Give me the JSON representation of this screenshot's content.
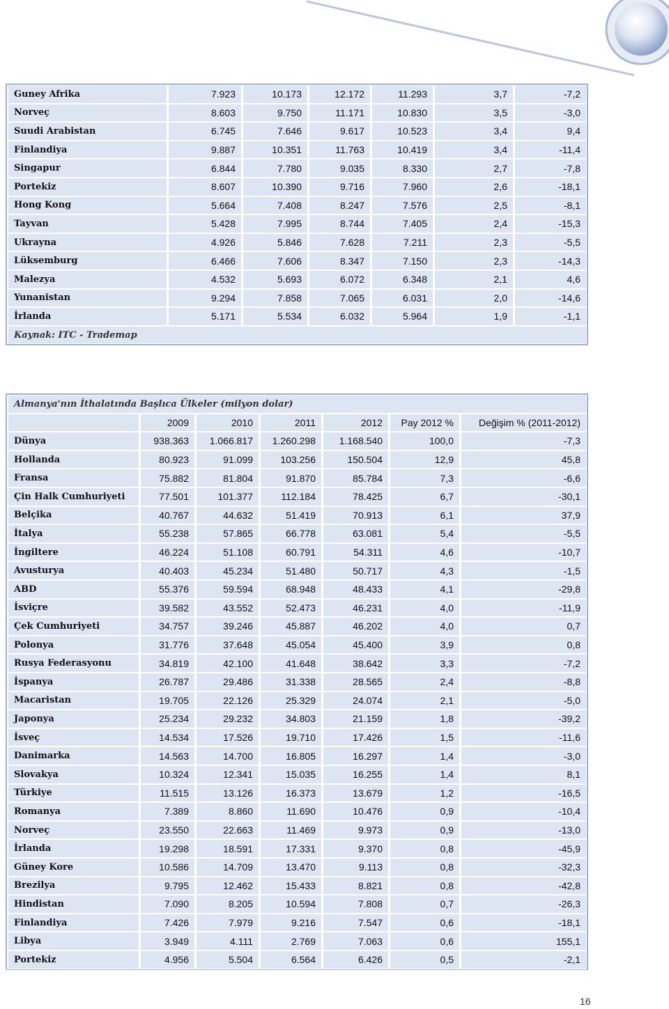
{
  "table1": {
    "rows": [
      [
        "Guney Afrika",
        "7.923",
        "10.173",
        "12.172",
        "11.293",
        "3,7",
        "-7,2"
      ],
      [
        "Norveç",
        "8.603",
        "9.750",
        "11.171",
        "10.830",
        "3,5",
        "-3,0"
      ],
      [
        "Suudi Arabistan",
        "6.745",
        "7.646",
        "9.617",
        "10.523",
        "3,4",
        "9,4"
      ],
      [
        "Finlandiya",
        "9.887",
        "10.351",
        "11.763",
        "10.419",
        "3,4",
        "-11,4"
      ],
      [
        "Singapur",
        "6.844",
        "7.780",
        "9.035",
        "8.330",
        "2,7",
        "-7,8"
      ],
      [
        "Portekiz",
        "8.607",
        "10.390",
        "9.716",
        "7.960",
        "2,6",
        "-18,1"
      ],
      [
        "Hong Kong",
        "5.664",
        "7.408",
        "8.247",
        "7.576",
        "2,5",
        "-8,1"
      ],
      [
        "Tayvan",
        "5.428",
        "7.995",
        "8.744",
        "7.405",
        "2,4",
        "-15,3"
      ],
      [
        "Ukrayna",
        "4.926",
        "5.846",
        "7.628",
        "7.211",
        "2,3",
        "-5,5"
      ],
      [
        "Lüksemburg",
        "6.466",
        "7.606",
        "8.347",
        "7.150",
        "2,3",
        "-14,3"
      ],
      [
        "Malezya",
        "4.532",
        "5.693",
        "6.072",
        "6.348",
        "2,1",
        "4,6"
      ],
      [
        "Yunanistan",
        "9.294",
        "7.858",
        "7.065",
        "6.031",
        "2,0",
        "-14,6"
      ],
      [
        "İrlanda",
        "5.171",
        "5.534",
        "6.032",
        "5.964",
        "1,9",
        "-1,1"
      ]
    ],
    "source": "Kaynak: ITC - Trademap"
  },
  "table2": {
    "title": "Almanya'nın İthalatında Başlıca Ülkeler (milyon dolar)",
    "header": [
      "2009",
      "2010",
      "2011",
      "2012",
      "Pay 2012 %",
      "Değişim % (2011-2012)"
    ],
    "rows": [
      [
        "Dünya",
        "938.363",
        "1.066.817",
        "1.260.298",
        "1.168.540",
        "100,0",
        "-7,3"
      ],
      [
        "Hollanda",
        "80.923",
        "91.099",
        "103.256",
        "150.504",
        "12,9",
        "45,8"
      ],
      [
        "Fransa",
        "75.882",
        "81.804",
        "91.870",
        "85.784",
        "7,3",
        "-6,6"
      ],
      [
        "Çin Halk Cumhuriyeti",
        "77.501",
        "101.377",
        "112.184",
        "78.425",
        "6,7",
        "-30,1"
      ],
      [
        "Belçika",
        "40.767",
        "44.632",
        "51.419",
        "70.913",
        "6,1",
        "37,9"
      ],
      [
        "İtalya",
        "55.238",
        "57.865",
        "66.778",
        "63.081",
        "5,4",
        "-5,5"
      ],
      [
        "İngiltere",
        "46.224",
        "51.108",
        "60.791",
        "54.311",
        "4,6",
        "-10,7"
      ],
      [
        "Avusturya",
        "40.403",
        "45.234",
        "51.480",
        "50.717",
        "4,3",
        "-1,5"
      ],
      [
        "ABD",
        "55.376",
        "59.594",
        "68.948",
        "48.433",
        "4,1",
        "-29,8"
      ],
      [
        "İsviçre",
        "39.582",
        "43.552",
        "52.473",
        "46.231",
        "4,0",
        "-11,9"
      ],
      [
        "Çek Cumhuriyeti",
        "34.757",
        "39.246",
        "45.887",
        "46.202",
        "4,0",
        "0,7"
      ],
      [
        "Polonya",
        "31.776",
        "37.648",
        "45.054",
        "45.400",
        "3,9",
        "0,8"
      ],
      [
        "Rusya Federasyonu",
        "34.819",
        "42.100",
        "41.648",
        "38.642",
        "3,3",
        "-7,2"
      ],
      [
        "İspanya",
        "26.787",
        "29.486",
        "31.338",
        "28.565",
        "2,4",
        "-8,8"
      ],
      [
        "Macaristan",
        "19.705",
        "22.126",
        "25.329",
        "24.074",
        "2,1",
        "-5,0"
      ],
      [
        "Japonya",
        "25.234",
        "29.232",
        "34.803",
        "21.159",
        "1,8",
        "-39,2"
      ],
      [
        "İsveç",
        "14.534",
        "17.526",
        "19.710",
        "17.426",
        "1,5",
        "-11,6"
      ],
      [
        "Danimarka",
        "14.563",
        "14.700",
        "16.805",
        "16.297",
        "1,4",
        "-3,0"
      ],
      [
        "Slovakya",
        "10.324",
        "12.341",
        "15.035",
        "16.255",
        "1,4",
        "8,1"
      ],
      [
        "Türkiye",
        "11.515",
        "13.126",
        "16.373",
        "13.679",
        "1,2",
        "-16,5"
      ],
      [
        "Romanya",
        "7.389",
        "8.860",
        "11.690",
        "10.476",
        "0,9",
        "-10,4"
      ],
      [
        "Norveç",
        "23.550",
        "22.663",
        "11.469",
        "9.973",
        "0,9",
        "-13,0"
      ],
      [
        "İrlanda",
        "19.298",
        "18.591",
        "17.331",
        "9.370",
        "0,8",
        "-45,9"
      ],
      [
        "Güney Kore",
        "10.586",
        "14.709",
        "13.470",
        "9.113",
        "0,8",
        "-32,3"
      ],
      [
        "Brezilya",
        "9.795",
        "12.462",
        "15.433",
        "8.821",
        "0,8",
        "-42,8"
      ],
      [
        "Hindistan",
        "7.090",
        "8.205",
        "10.594",
        "7.808",
        "0,7",
        "-26,3"
      ],
      [
        "Finlandiya",
        "7.426",
        "7.979",
        "9.216",
        "7.547",
        "0,6",
        "-18,1"
      ],
      [
        "Libya",
        "3.949",
        "4.111",
        "2.769",
        "7.063",
        "0,6",
        "155,1"
      ],
      [
        "Portekiz",
        "4.956",
        "5.504",
        "6.564",
        "6.426",
        "0,5",
        "-2,1"
      ]
    ]
  },
  "page_number": "16"
}
